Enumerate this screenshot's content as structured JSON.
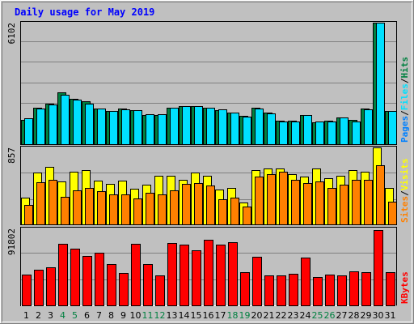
{
  "chart_data": {
    "type": "bar",
    "title": "Daily usage for May 2019",
    "categories": [
      "1",
      "2",
      "3",
      "4",
      "5",
      "6",
      "7",
      "8",
      "9",
      "10",
      "11",
      "12",
      "13",
      "14",
      "15",
      "16",
      "17",
      "18",
      "19",
      "20",
      "21",
      "22",
      "23",
      "24",
      "25",
      "26",
      "27",
      "28",
      "29",
      "30",
      "31"
    ],
    "weekend_days": [
      "4",
      "5",
      "11",
      "12",
      "18",
      "19",
      "25",
      "26"
    ],
    "panels": [
      {
        "id": "hits-files-pages",
        "max_label": "6102",
        "ylim": [
          0,
          6102
        ],
        "side_label": [
          "Pages",
          "Files",
          "Hits"
        ],
        "series": [
          {
            "name": "Hits",
            "color": "#008040",
            "values": [
              1230,
              1850,
              2050,
              2590,
              2290,
              2170,
              1790,
              1660,
              1790,
              1720,
              1480,
              1480,
              1850,
              1910,
              1910,
              1850,
              1720,
              1600,
              1420,
              1850,
              1600,
              1170,
              1170,
              1480,
              1110,
              1170,
              1360,
              1230,
              1790,
              6102,
              1660
            ]
          },
          {
            "name": "Files",
            "color": "#00e0ff",
            "values": [
              1300,
              1800,
              2000,
              2500,
              2250,
              2050,
              1800,
              1650,
              1750,
              1700,
              1500,
              1500,
              1850,
              1900,
              1900,
              1850,
              1750,
              1600,
              1400,
              1800,
              1550,
              1150,
              1150,
              1450,
              1150,
              1150,
              1350,
              1150,
              1750,
              6102,
              1650
            ]
          },
          {
            "name": "Pages",
            "color": "#0080ff",
            "values": [
              0,
              0,
              0,
              0,
              0,
              0,
              0,
              0,
              0,
              0,
              0,
              0,
              0,
              0,
              0,
              0,
              0,
              0,
              0,
              0,
              0,
              0,
              0,
              0,
              0,
              0,
              0,
              0,
              0,
              0,
              0
            ]
          }
        ]
      },
      {
        "id": "visits-sites",
        "max_label": "857",
        "ylim": [
          0,
          857
        ],
        "side_label": [
          "Sites",
          "Visits"
        ],
        "series": [
          {
            "name": "Visits",
            "color": "#ffff00",
            "values": [
              300,
              580,
              640,
              480,
              590,
              600,
              490,
              450,
              490,
              400,
              440,
              540,
              540,
              500,
              580,
              540,
              390,
              410,
              240,
              600,
              620,
              620,
              560,
              530,
              620,
              510,
              540,
              600,
              590,
              857,
              410
            ]
          },
          {
            "name": "Sites",
            "color": "#ff8000",
            "values": [
              220,
              470,
              500,
              310,
              380,
              410,
              370,
              330,
              330,
              290,
              350,
              330,
              380,
              450,
              460,
              430,
              280,
              300,
              200,
              530,
              560,
              590,
              500,
              460,
              480,
              410,
              440,
              500,
              500,
              660,
              250
            ]
          }
        ]
      },
      {
        "id": "kbytes",
        "max_label": "91802",
        "ylim": [
          0,
          91802
        ],
        "side_label": [
          "KBytes"
        ],
        "series": [
          {
            "name": "KBytes",
            "color": "#ff0000",
            "values": [
              37000,
              43000,
              45000,
              73000,
              68000,
              59000,
              63000,
              49000,
              39000,
              73000,
              49000,
              36000,
              74000,
              72000,
              66000,
              78000,
              72000,
              75000,
              40000,
              58000,
              36000,
              36000,
              38000,
              57000,
              34000,
              37000,
              36000,
              41000,
              40000,
              90000,
              40000
            ]
          }
        ]
      }
    ]
  },
  "colors": {
    "page_bg": "#c0c0c0",
    "plot_bg": "#c0c0c0",
    "title": "#0000ff",
    "day_normal": "#000000",
    "day_weekend": "#008040",
    "frame_light": "#ffffff",
    "frame_dark": "#808080",
    "grid": "#808080"
  }
}
